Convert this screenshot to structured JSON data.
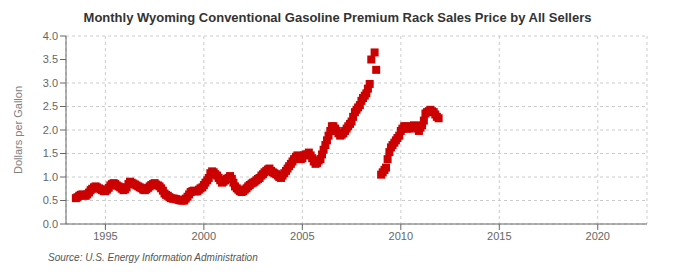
{
  "chart_data": {
    "type": "scatter",
    "title": "Monthly Wyoming Conventional Gasoline Premium Rack Sales Price by All Sellers",
    "ylabel": "Dollars per Gallon",
    "annotation": "Source: U.S. Energy Information Administration",
    "color": "#cc0000",
    "marker": "square",
    "grid": true,
    "xlim": [
      1993.0,
      2022.5
    ],
    "xticks": [
      1995,
      2000,
      2005,
      2010,
      2015,
      2020
    ],
    "ylim": [
      0.0,
      4.0
    ],
    "yticks": [
      {
        "value": 0.0,
        "label": "0.0"
      },
      0.5,
      {
        "value": 1.0,
        "label": "1.0"
      },
      1.5,
      {
        "value": 2.0,
        "label": "2.0"
      },
      2.5,
      {
        "value": 3.0,
        "label": "3.0"
      },
      3.5,
      {
        "value": 4.0,
        "label": "4.0"
      }
    ],
    "x": [
      1993.5,
      1993.58,
      1993.67,
      1993.75,
      1993.83,
      1993.92,
      1994.0,
      1994.08,
      1994.17,
      1994.25,
      1994.33,
      1994.42,
      1994.5,
      1994.58,
      1994.67,
      1994.75,
      1994.83,
      1994.92,
      1995.0,
      1995.08,
      1995.17,
      1995.25,
      1995.33,
      1995.42,
      1995.5,
      1995.58,
      1995.67,
      1995.75,
      1995.83,
      1995.92,
      1996.0,
      1996.08,
      1996.17,
      1996.25,
      1996.33,
      1996.42,
      1996.5,
      1996.58,
      1996.67,
      1996.75,
      1996.83,
      1996.92,
      1997.0,
      1997.08,
      1997.17,
      1997.25,
      1997.33,
      1997.42,
      1997.5,
      1997.58,
      1997.67,
      1997.75,
      1997.83,
      1997.92,
      1998.0,
      1998.08,
      1998.17,
      1998.25,
      1998.33,
      1998.42,
      1998.5,
      1998.58,
      1998.67,
      1998.75,
      1998.83,
      1998.92,
      1999.0,
      1999.08,
      1999.17,
      1999.25,
      1999.33,
      1999.42,
      1999.5,
      1999.58,
      1999.67,
      1999.75,
      1999.83,
      1999.92,
      2000.0,
      2000.08,
      2000.17,
      2000.25,
      2000.33,
      2000.42,
      2000.5,
      2000.58,
      2000.67,
      2000.75,
      2000.83,
      2000.92,
      2001.0,
      2001.08,
      2001.17,
      2001.25,
      2001.33,
      2001.42,
      2001.5,
      2001.58,
      2001.67,
      2001.75,
      2001.83,
      2001.92,
      2002.0,
      2002.08,
      2002.17,
      2002.25,
      2002.33,
      2002.42,
      2002.5,
      2002.58,
      2002.67,
      2002.75,
      2002.83,
      2002.92,
      2003.0,
      2003.08,
      2003.17,
      2003.25,
      2003.33,
      2003.42,
      2003.5,
      2003.58,
      2003.67,
      2003.75,
      2003.83,
      2003.92,
      2004.0,
      2004.08,
      2004.17,
      2004.25,
      2004.33,
      2004.42,
      2004.5,
      2004.58,
      2004.67,
      2004.75,
      2004.83,
      2004.92,
      2005.0,
      2005.08,
      2005.17,
      2005.25,
      2005.33,
      2005.42,
      2005.5,
      2005.58,
      2005.67,
      2005.75,
      2005.83,
      2005.92,
      2006.0,
      2006.08,
      2006.17,
      2006.25,
      2006.33,
      2006.42,
      2006.5,
      2006.58,
      2006.67,
      2006.75,
      2006.83,
      2006.92,
      2007.0,
      2007.08,
      2007.17,
      2007.25,
      2007.33,
      2007.42,
      2007.5,
      2007.58,
      2007.67,
      2007.75,
      2007.83,
      2007.92,
      2008.0,
      2008.08,
      2008.17,
      2008.25,
      2008.33,
      2008.42,
      2008.5,
      2008.67,
      2008.75,
      2009.0,
      2009.08,
      2009.17,
      2009.25,
      2009.33,
      2009.42,
      2009.5,
      2009.58,
      2009.67,
      2009.75,
      2009.83,
      2009.92,
      2010.0,
      2010.08,
      2010.17,
      2010.25,
      2010.33,
      2010.42,
      2010.5,
      2010.58,
      2010.67,
      2010.75,
      2010.83,
      2010.92,
      2011.0,
      2011.08,
      2011.17,
      2011.25,
      2011.33,
      2011.42,
      2011.5,
      2011.58,
      2011.67,
      2011.75,
      2011.83,
      2011.92
    ],
    "values": [
      0.55,
      0.57,
      0.6,
      0.62,
      0.63,
      0.61,
      0.6,
      0.63,
      0.67,
      0.72,
      0.75,
      0.78,
      0.8,
      0.78,
      0.76,
      0.74,
      0.72,
      0.7,
      0.7,
      0.73,
      0.77,
      0.82,
      0.85,
      0.87,
      0.85,
      0.82,
      0.8,
      0.78,
      0.75,
      0.72,
      0.74,
      0.78,
      0.85,
      0.9,
      0.88,
      0.86,
      0.84,
      0.82,
      0.8,
      0.78,
      0.76,
      0.73,
      0.72,
      0.74,
      0.77,
      0.8,
      0.83,
      0.85,
      0.87,
      0.84,
      0.82,
      0.8,
      0.76,
      0.71,
      0.65,
      0.62,
      0.6,
      0.57,
      0.55,
      0.54,
      0.54,
      0.53,
      0.52,
      0.51,
      0.5,
      0.5,
      0.5,
      0.54,
      0.58,
      0.63,
      0.68,
      0.7,
      0.71,
      0.69,
      0.7,
      0.73,
      0.76,
      0.78,
      0.83,
      0.88,
      0.93,
      0.98,
      1.08,
      1.12,
      1.1,
      1.06,
      1.03,
      0.98,
      0.93,
      0.88,
      0.9,
      0.93,
      0.96,
      0.98,
      1.02,
      0.96,
      0.88,
      0.8,
      0.76,
      0.73,
      0.7,
      0.68,
      0.7,
      0.73,
      0.76,
      0.8,
      0.83,
      0.86,
      0.88,
      0.9,
      0.93,
      0.96,
      0.98,
      1.03,
      1.06,
      1.1,
      1.13,
      1.16,
      1.18,
      1.13,
      1.1,
      1.08,
      1.06,
      1.03,
      1.0,
      0.98,
      1.03,
      1.08,
      1.13,
      1.18,
      1.23,
      1.28,
      1.33,
      1.38,
      1.43,
      1.46,
      1.43,
      1.38,
      1.4,
      1.46,
      1.48,
      1.48,
      1.52,
      1.46,
      1.4,
      1.33,
      1.28,
      1.3,
      1.35,
      1.38,
      1.48,
      1.58,
      1.68,
      1.78,
      1.88,
      1.98,
      2.08,
      2.08,
      2.03,
      1.98,
      1.93,
      1.88,
      1.9,
      1.93,
      1.98,
      2.03,
      2.08,
      2.13,
      2.18,
      2.28,
      2.38,
      2.43,
      2.48,
      2.53,
      2.62,
      2.68,
      2.73,
      2.78,
      2.88,
      2.98,
      3.5,
      3.65,
      3.28,
      1.05,
      1.1,
      1.15,
      1.2,
      1.38,
      1.53,
      1.63,
      1.68,
      1.73,
      1.78,
      1.83,
      1.88,
      1.98,
      2.03,
      2.08,
      2.08,
      2.03,
      2.03,
      2.06,
      2.08,
      2.1,
      2.08,
      2.03,
      1.98,
      2.05,
      2.1,
      2.2,
      2.35,
      2.38,
      2.4,
      2.43,
      2.4,
      2.38,
      2.33,
      2.28,
      2.25
    ]
  }
}
